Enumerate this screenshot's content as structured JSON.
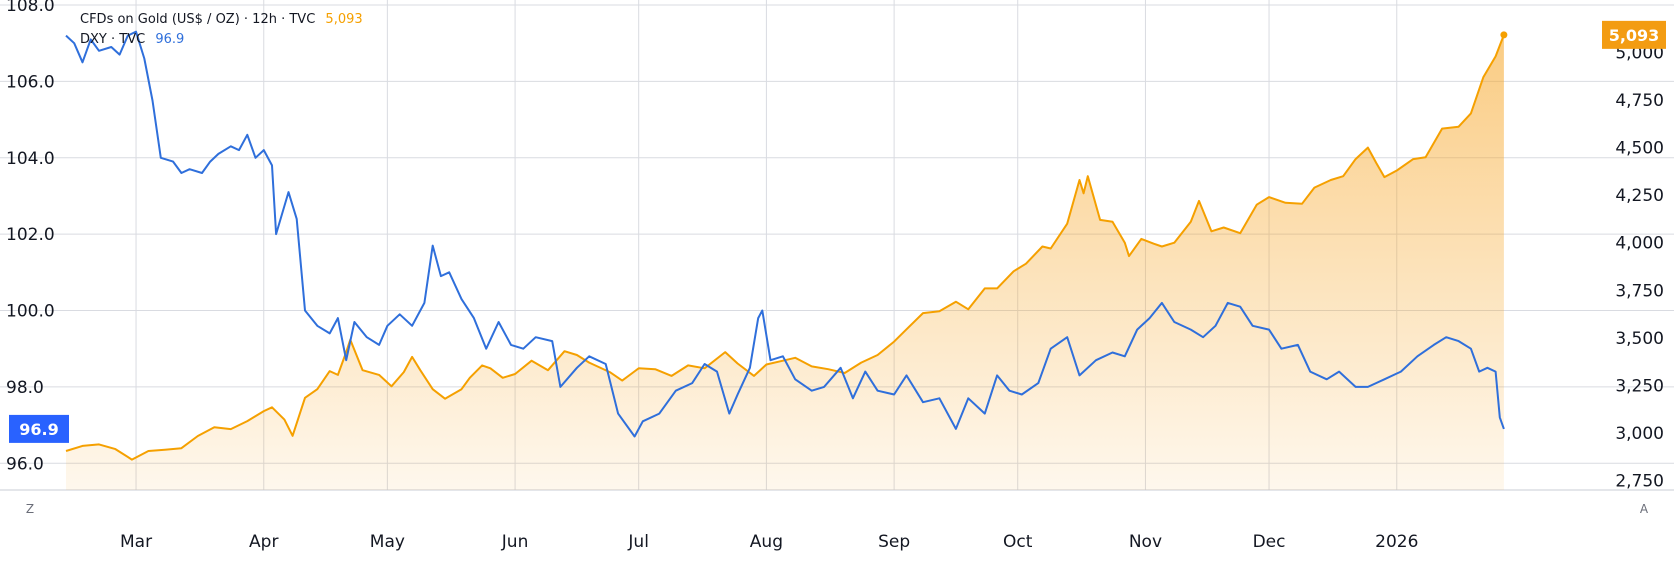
{
  "legend": {
    "gold_label": "CFDs on Gold (US$ / OZ) · 12h · TVC",
    "gold_value": "5,093",
    "dxy_label": "DXY · TVC",
    "dxy_value": "96.9"
  },
  "corner": {
    "left": "Z",
    "right": "A"
  },
  "badges": {
    "dxy": "96.9",
    "gold": "5,093"
  },
  "colors": {
    "gold": "#f5a000",
    "dxy": "#2f6fdb",
    "gold_badge": "#f39c12",
    "dxy_badge": "#2962ff",
    "grid": "#d9dbe1"
  },
  "chart_data": {
    "type": "line",
    "x_type": "date",
    "x_range": [
      "2025-02-12",
      "2026-01-28"
    ],
    "x_ticks": [
      {
        "date": "2025-03-01",
        "label": "Mar"
      },
      {
        "date": "2025-04-01",
        "label": "Apr"
      },
      {
        "date": "2025-05-01",
        "label": "May"
      },
      {
        "date": "2025-06-01",
        "label": "Jun"
      },
      {
        "date": "2025-07-01",
        "label": "Jul"
      },
      {
        "date": "2025-08-01",
        "label": "Aug"
      },
      {
        "date": "2025-09-01",
        "label": "Sep"
      },
      {
        "date": "2025-10-01",
        "label": "Oct"
      },
      {
        "date": "2025-11-01",
        "label": "Nov"
      },
      {
        "date": "2025-12-01",
        "label": "Dec"
      },
      {
        "date": "2026-01-01",
        "label": "2026"
      }
    ],
    "left_axis": {
      "series": "DXY",
      "ylim": [
        95.3,
        108.0
      ],
      "ticks": [
        "96.0",
        "98.0",
        "100.0",
        "102.0",
        "104.0",
        "106.0",
        "108.0"
      ]
    },
    "right_axis": {
      "series": "Gold",
      "ylim": [
        2700,
        5250
      ],
      "ticks": [
        "2,750",
        "3,000",
        "3,250",
        "3,500",
        "3,750",
        "4,000",
        "4,250",
        "4,500",
        "4,750",
        "5,000"
      ]
    },
    "grid": true,
    "series": [
      {
        "name": "Gold",
        "axis": "right",
        "style": "area",
        "points": [
          [
            "2025-02-12",
            2905
          ],
          [
            "2025-02-16",
            2932
          ],
          [
            "2025-02-20",
            2940
          ],
          [
            "2025-02-24",
            2915
          ],
          [
            "2025-02-28",
            2860
          ],
          [
            "2025-03-04",
            2905
          ],
          [
            "2025-03-08",
            2912
          ],
          [
            "2025-03-12",
            2920
          ],
          [
            "2025-03-16",
            2984
          ],
          [
            "2025-03-20",
            3030
          ],
          [
            "2025-03-24",
            3020
          ],
          [
            "2025-03-28",
            3062
          ],
          [
            "2025-04-01",
            3115
          ],
          [
            "2025-04-03",
            3135
          ],
          [
            "2025-04-06",
            3070
          ],
          [
            "2025-04-08",
            2985
          ],
          [
            "2025-04-11",
            3185
          ],
          [
            "2025-04-14",
            3230
          ],
          [
            "2025-04-17",
            3325
          ],
          [
            "2025-04-19",
            3305
          ],
          [
            "2025-04-21",
            3425
          ],
          [
            "2025-04-22",
            3490
          ],
          [
            "2025-04-25",
            3330
          ],
          [
            "2025-04-29",
            3305
          ],
          [
            "2025-05-02",
            3245
          ],
          [
            "2025-05-05",
            3320
          ],
          [
            "2025-05-07",
            3400
          ],
          [
            "2025-05-09",
            3330
          ],
          [
            "2025-05-12",
            3230
          ],
          [
            "2025-05-15",
            3180
          ],
          [
            "2025-05-19",
            3230
          ],
          [
            "2025-05-21",
            3290
          ],
          [
            "2025-05-24",
            3355
          ],
          [
            "2025-05-26",
            3340
          ],
          [
            "2025-05-29",
            3290
          ],
          [
            "2025-06-01",
            3310
          ],
          [
            "2025-06-05",
            3380
          ],
          [
            "2025-06-09",
            3330
          ],
          [
            "2025-06-13",
            3430
          ],
          [
            "2025-06-16",
            3410
          ],
          [
            "2025-06-19",
            3370
          ],
          [
            "2025-06-24",
            3320
          ],
          [
            "2025-06-27",
            3275
          ],
          [
            "2025-07-01",
            3340
          ],
          [
            "2025-07-05",
            3335
          ],
          [
            "2025-07-09",
            3300
          ],
          [
            "2025-07-13",
            3355
          ],
          [
            "2025-07-17",
            3340
          ],
          [
            "2025-07-22",
            3425
          ],
          [
            "2025-07-25",
            3365
          ],
          [
            "2025-07-29",
            3300
          ],
          [
            "2025-08-01",
            3360
          ],
          [
            "2025-08-05",
            3380
          ],
          [
            "2025-08-08",
            3395
          ],
          [
            "2025-08-12",
            3350
          ],
          [
            "2025-08-16",
            3335
          ],
          [
            "2025-08-20",
            3315
          ],
          [
            "2025-08-24",
            3370
          ],
          [
            "2025-08-28",
            3410
          ],
          [
            "2025-09-01",
            3480
          ],
          [
            "2025-09-04",
            3545
          ],
          [
            "2025-09-08",
            3630
          ],
          [
            "2025-09-12",
            3640
          ],
          [
            "2025-09-16",
            3690
          ],
          [
            "2025-09-19",
            3650
          ],
          [
            "2025-09-23",
            3760
          ],
          [
            "2025-09-26",
            3760
          ],
          [
            "2025-09-30",
            3850
          ],
          [
            "2025-10-03",
            3890
          ],
          [
            "2025-10-07",
            3980
          ],
          [
            "2025-10-09",
            3970
          ],
          [
            "2025-10-13",
            4100
          ],
          [
            "2025-10-16",
            4330
          ],
          [
            "2025-10-17",
            4260
          ],
          [
            "2025-10-18",
            4350
          ],
          [
            "2025-10-21",
            4120
          ],
          [
            "2025-10-24",
            4110
          ],
          [
            "2025-10-27",
            4000
          ],
          [
            "2025-10-28",
            3930
          ],
          [
            "2025-10-31",
            4020
          ],
          [
            "2025-11-03",
            3995
          ],
          [
            "2025-11-05",
            3980
          ],
          [
            "2025-11-08",
            4000
          ],
          [
            "2025-11-12",
            4110
          ],
          [
            "2025-11-14",
            4220
          ],
          [
            "2025-11-17",
            4060
          ],
          [
            "2025-11-20",
            4080
          ],
          [
            "2025-11-24",
            4050
          ],
          [
            "2025-11-28",
            4200
          ],
          [
            "2025-12-01",
            4240
          ],
          [
            "2025-12-05",
            4210
          ],
          [
            "2025-12-09",
            4205
          ],
          [
            "2025-12-12",
            4290
          ],
          [
            "2025-12-16",
            4330
          ],
          [
            "2025-12-19",
            4350
          ],
          [
            "2025-12-22",
            4440
          ],
          [
            "2025-12-25",
            4500
          ],
          [
            "2025-12-27",
            4420
          ],
          [
            "2025-12-29",
            4345
          ],
          [
            "2026-01-01",
            4380
          ],
          [
            "2026-01-05",
            4440
          ],
          [
            "2026-01-08",
            4450
          ],
          [
            "2026-01-12",
            4600
          ],
          [
            "2026-01-16",
            4610
          ],
          [
            "2026-01-19",
            4680
          ],
          [
            "2026-01-22",
            4870
          ],
          [
            "2026-01-25",
            4980
          ],
          [
            "2026-01-27",
            5093
          ]
        ]
      },
      {
        "name": "DXY",
        "axis": "left",
        "style": "line",
        "points": [
          [
            "2025-02-12",
            107.2
          ],
          [
            "2025-02-14",
            107.0
          ],
          [
            "2025-02-16",
            106.5
          ],
          [
            "2025-02-18",
            107.1
          ],
          [
            "2025-02-20",
            106.8
          ],
          [
            "2025-02-23",
            106.9
          ],
          [
            "2025-02-25",
            106.7
          ],
          [
            "2025-02-27",
            107.2
          ],
          [
            "2025-03-01",
            107.3
          ],
          [
            "2025-03-03",
            106.6
          ],
          [
            "2025-03-05",
            105.5
          ],
          [
            "2025-03-07",
            104.0
          ],
          [
            "2025-03-10",
            103.9
          ],
          [
            "2025-03-12",
            103.6
          ],
          [
            "2025-03-14",
            103.7
          ],
          [
            "2025-03-17",
            103.6
          ],
          [
            "2025-03-19",
            103.9
          ],
          [
            "2025-03-21",
            104.1
          ],
          [
            "2025-03-24",
            104.3
          ],
          [
            "2025-03-26",
            104.2
          ],
          [
            "2025-03-28",
            104.6
          ],
          [
            "2025-03-30",
            104.0
          ],
          [
            "2025-04-01",
            104.2
          ],
          [
            "2025-04-03",
            103.8
          ],
          [
            "2025-04-04",
            102.0
          ],
          [
            "2025-04-07",
            103.1
          ],
          [
            "2025-04-09",
            102.4
          ],
          [
            "2025-04-11",
            100.0
          ],
          [
            "2025-04-14",
            99.6
          ],
          [
            "2025-04-17",
            99.4
          ],
          [
            "2025-04-19",
            99.8
          ],
          [
            "2025-04-21",
            98.7
          ],
          [
            "2025-04-23",
            99.7
          ],
          [
            "2025-04-26",
            99.3
          ],
          [
            "2025-04-29",
            99.1
          ],
          [
            "2025-05-01",
            99.6
          ],
          [
            "2025-05-04",
            99.9
          ],
          [
            "2025-05-07",
            99.6
          ],
          [
            "2025-05-10",
            100.2
          ],
          [
            "2025-05-12",
            101.7
          ],
          [
            "2025-05-14",
            100.9
          ],
          [
            "2025-05-16",
            101.0
          ],
          [
            "2025-05-19",
            100.3
          ],
          [
            "2025-05-22",
            99.8
          ],
          [
            "2025-05-25",
            99.0
          ],
          [
            "2025-05-28",
            99.7
          ],
          [
            "2025-05-31",
            99.1
          ],
          [
            "2025-06-03",
            99.0
          ],
          [
            "2025-06-06",
            99.3
          ],
          [
            "2025-06-10",
            99.2
          ],
          [
            "2025-06-12",
            98.0
          ],
          [
            "2025-06-16",
            98.5
          ],
          [
            "2025-06-19",
            98.8
          ],
          [
            "2025-06-23",
            98.6
          ],
          [
            "2025-06-26",
            97.3
          ],
          [
            "2025-06-30",
            96.7
          ],
          [
            "2025-07-02",
            97.1
          ],
          [
            "2025-07-06",
            97.3
          ],
          [
            "2025-07-10",
            97.9
          ],
          [
            "2025-07-14",
            98.1
          ],
          [
            "2025-07-17",
            98.6
          ],
          [
            "2025-07-20",
            98.4
          ],
          [
            "2025-07-23",
            97.3
          ],
          [
            "2025-07-25",
            97.8
          ],
          [
            "2025-07-28",
            98.5
          ],
          [
            "2025-07-30",
            99.8
          ],
          [
            "2025-07-31",
            100.0
          ],
          [
            "2025-08-02",
            98.7
          ],
          [
            "2025-08-05",
            98.8
          ],
          [
            "2025-08-08",
            98.2
          ],
          [
            "2025-08-12",
            97.9
          ],
          [
            "2025-08-15",
            98.0
          ],
          [
            "2025-08-19",
            98.5
          ],
          [
            "2025-08-22",
            97.7
          ],
          [
            "2025-08-25",
            98.4
          ],
          [
            "2025-08-28",
            97.9
          ],
          [
            "2025-09-01",
            97.8
          ],
          [
            "2025-09-04",
            98.3
          ],
          [
            "2025-09-08",
            97.6
          ],
          [
            "2025-09-12",
            97.7
          ],
          [
            "2025-09-16",
            96.9
          ],
          [
            "2025-09-19",
            97.7
          ],
          [
            "2025-09-23",
            97.3
          ],
          [
            "2025-09-26",
            98.3
          ],
          [
            "2025-09-29",
            97.9
          ],
          [
            "2025-10-02",
            97.8
          ],
          [
            "2025-10-06",
            98.1
          ],
          [
            "2025-10-09",
            99.0
          ],
          [
            "2025-10-13",
            99.3
          ],
          [
            "2025-10-16",
            98.3
          ],
          [
            "2025-10-20",
            98.7
          ],
          [
            "2025-10-24",
            98.9
          ],
          [
            "2025-10-27",
            98.8
          ],
          [
            "2025-10-30",
            99.5
          ],
          [
            "2025-11-02",
            99.8
          ],
          [
            "2025-11-05",
            100.2
          ],
          [
            "2025-11-08",
            99.7
          ],
          [
            "2025-11-12",
            99.5
          ],
          [
            "2025-11-15",
            99.3
          ],
          [
            "2025-11-18",
            99.6
          ],
          [
            "2025-11-21",
            100.2
          ],
          [
            "2025-11-24",
            100.1
          ],
          [
            "2025-11-27",
            99.6
          ],
          [
            "2025-12-01",
            99.5
          ],
          [
            "2025-12-04",
            99.0
          ],
          [
            "2025-12-08",
            99.1
          ],
          [
            "2025-12-11",
            98.4
          ],
          [
            "2025-12-15",
            98.2
          ],
          [
            "2025-12-18",
            98.4
          ],
          [
            "2025-12-22",
            98.0
          ],
          [
            "2025-12-25",
            98.0
          ],
          [
            "2025-12-29",
            98.2
          ],
          [
            "2026-01-02",
            98.4
          ],
          [
            "2026-01-06",
            98.8
          ],
          [
            "2026-01-10",
            99.1
          ],
          [
            "2026-01-13",
            99.3
          ],
          [
            "2026-01-16",
            99.2
          ],
          [
            "2026-01-19",
            99.0
          ],
          [
            "2026-01-21",
            98.4
          ],
          [
            "2026-01-23",
            98.5
          ],
          [
            "2026-01-25",
            98.4
          ],
          [
            "2026-01-26",
            97.2
          ],
          [
            "2026-01-27",
            96.9
          ]
        ]
      }
    ]
  }
}
